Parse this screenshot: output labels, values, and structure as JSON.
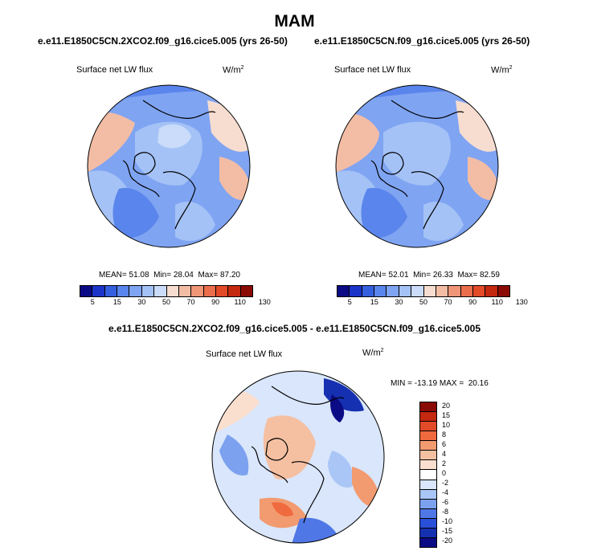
{
  "figure": {
    "title": "MAM",
    "panels": [
      {
        "case": "e.e11.E1850C5CN.2XCO2.f09_g16.cice5.005 (yrs 26-50)",
        "variable": "Surface net LW flux",
        "units_base": "W/m",
        "units_exp": "2",
        "stats": {
          "mean_label": "MEAN=",
          "mean": "51.08",
          "min_label": "Min=",
          "min": "28.04",
          "max_label": "Max=",
          "max": "87.20"
        }
      },
      {
        "case": "e.e11.E1850C5CN.f09_g16.cice5.005 (yrs 26-50)",
        "variable": "Surface net LW flux",
        "units_base": "W/m",
        "units_exp": "2",
        "stats": {
          "mean_label": "MEAN=",
          "mean": "52.01",
          "min_label": "Min=",
          "min": "26.33",
          "max_label": "Max=",
          "max": "82.59"
        }
      }
    ],
    "diff_panel": {
      "case": "e.e11.E1850C5CN.2XCO2.f09_g16.cice5.005 - e.e11.E1850C5CN.f09_g16.cice5.005",
      "variable": "Surface net LW flux",
      "units_base": "W/m",
      "units_exp": "2",
      "stats": {
        "min_label": "MIN =",
        "min": "-13.19",
        "max_label": "MAX =",
        "max": "20.16"
      }
    }
  },
  "chart_data": [
    {
      "type": "heatmap",
      "projection": "north polar stereographic",
      "title": "Surface net LW flux",
      "units": "W/m2",
      "colorbar": {
        "orientation": "horizontal",
        "colors": [
          "#0b0b85",
          "#1d34c8",
          "#3460e0",
          "#5a85ec",
          "#7fa4f2",
          "#a4c2f6",
          "#cadcf9",
          "#f7ddd0",
          "#f3bda5",
          "#ee9677",
          "#ea6d4c",
          "#e24a28",
          "#c4280f",
          "#8a0a05"
        ],
        "tick_labels": [
          "5",
          "15",
          "30",
          "50",
          "70",
          "90",
          "110",
          "130"
        ]
      },
      "stats": {
        "mean": 51.08,
        "min": 28.04,
        "max": 87.2
      }
    },
    {
      "type": "heatmap",
      "projection": "north polar stereographic",
      "title": "Surface net LW flux",
      "units": "W/m2",
      "colorbar": {
        "orientation": "horizontal",
        "colors": [
          "#0b0b85",
          "#1d34c8",
          "#3460e0",
          "#5a85ec",
          "#7fa4f2",
          "#a4c2f6",
          "#cadcf9",
          "#f7ddd0",
          "#f3bda5",
          "#ee9677",
          "#ea6d4c",
          "#e24a28",
          "#c4280f",
          "#8a0a05"
        ],
        "tick_labels": [
          "5",
          "15",
          "30",
          "50",
          "70",
          "90",
          "110",
          "130"
        ]
      },
      "stats": {
        "mean": 52.01,
        "min": 26.33,
        "max": 82.59
      }
    },
    {
      "type": "heatmap",
      "projection": "north polar stereographic",
      "title": "Surface net LW flux",
      "units": "W/m2",
      "colorbar": {
        "orientation": "vertical",
        "levels_top_to_bottom": [
          "20",
          "15",
          "10",
          "8",
          "6",
          "4",
          "2",
          "0",
          "-2",
          "-4",
          "-6",
          "-8",
          "-10",
          "-15",
          "-20"
        ],
        "colors_top_to_bottom": [
          "#8a0a05",
          "#c4280f",
          "#e24a28",
          "#ef6a3e",
          "#f29a70",
          "#f5c0a2",
          "#fadfcf",
          "#ffffff",
          "#d9e6fb",
          "#aac6f6",
          "#7ca1ef",
          "#5077e6",
          "#2a4fd8",
          "#1530b0",
          "#0b0b85"
        ]
      },
      "stats": {
        "min": -13.19,
        "max": 20.16
      }
    }
  ]
}
